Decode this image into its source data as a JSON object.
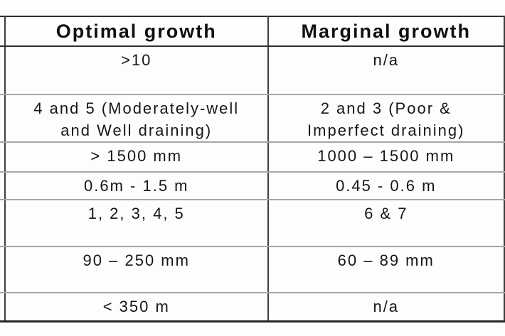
{
  "table": {
    "columns": [
      {
        "label": "Optimal growth"
      },
      {
        "label": "Marginal growth"
      }
    ],
    "rows": [
      {
        "optimal": ">10",
        "marginal": "n/a"
      },
      {
        "optimal": [
          "4 and 5 (Moderately-well",
          "and Well draining)"
        ],
        "marginal": [
          "2 and 3 (Poor &",
          "Imperfect draining)"
        ]
      },
      {
        "optimal": "> 1500 mm",
        "marginal": "1000 – 1500 mm"
      },
      {
        "optimal": "0.6m - 1.5 m",
        "marginal": "0.45 - 0.6 m"
      },
      {
        "optimal": "1, 2, 3, 4, 5",
        "marginal": "6 & 7"
      },
      {
        "optimal": "90 – 250 mm",
        "marginal": "60 – 89 mm"
      },
      {
        "optimal": "< 350 m",
        "marginal": "n/a"
      }
    ],
    "colors": {
      "background": "#fdfdfd",
      "text": "#161616",
      "outer_border": "#2f2f2f",
      "row_grid": "#a6a6a6",
      "column_divider": "#3d3d3d"
    }
  }
}
